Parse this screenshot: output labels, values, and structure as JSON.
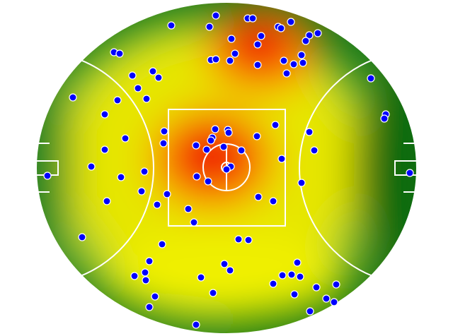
{
  "chart_data": {
    "type": "scatter",
    "color": "#0000ff",
    "xlim": [
      0,
      64
    ],
    "ylim": [
      47.6,
      0
    ],
    "x": [
      30.5,
      35.0,
      35.7,
      24.2,
      29.6,
      39.3,
      39.7,
      41.1,
      43.7,
      44.9,
      36.9,
      32.7,
      36.4,
      43.2,
      16.1,
      16.9,
      33.2,
      42.6,
      29.8,
      30.5,
      32.5,
      36.4,
      40.1,
      41.5,
      42.8,
      21.6,
      18.7,
      22.4,
      40.5,
      52.4,
      19.5,
      20.7,
      16.6,
      10.3,
      14.8,
      54.5,
      54.3,
      30.4,
      32.2,
      32.3,
      38.9,
      23.2,
      43.7,
      30.0,
      29.8,
      36.3,
      17.7,
      23.1,
      27.7,
      31.6,
      29.2,
      34.1,
      44.4,
      14.8,
      39.8,
      12.9,
      32.6,
      32.0,
      20.4,
      27.8,
      6.7,
      57.9,
      17.1,
      29.4,
      42.6,
      20.0,
      23.6,
      36.5,
      38.6,
      15.1,
      22.2,
      26.6,
      27.4,
      11.6,
      33.7,
      35.1,
      22.9,
      21.1,
      31.7,
      32.5,
      42.0,
      20.5,
      19.0,
      20.6,
      28.4,
      39.9,
      41.2,
      42.4,
      38.6,
      47.5,
      44.7,
      30.1,
      41.6,
      21.9,
      46.1,
      47.2,
      21.1,
      43.8,
      27.7
    ],
    "y": [
      2.2,
      2.6,
      2.6,
      3.6,
      3.8,
      3.8,
      4.0,
      3.1,
      5.0,
      4.7,
      5.1,
      5.5,
      6.3,
      5.8,
      7.4,
      7.6,
      7.6,
      7.8,
      8.5,
      8.4,
      8.6,
      9.2,
      8.6,
      9.1,
      8.9,
      10.1,
      10.7,
      11.0,
      10.4,
      11.1,
      12.5,
      14.0,
      14.2,
      13.8,
      16.2,
      16.2,
      16.8,
      18.3,
      18.4,
      18.8,
      17.7,
      18.6,
      18.7,
      19.5,
      19.9,
      19.3,
      19.6,
      20.3,
      20.6,
      20.8,
      21.2,
      21.3,
      21.3,
      21.2,
      22.5,
      23.6,
      23.6,
      24.0,
      24.3,
      25.0,
      24.9,
      24.5,
      25.1,
      25.7,
      25.9,
      27.1,
      27.5,
      27.9,
      28.5,
      28.5,
      29.0,
      29.6,
      31.5,
      33.6,
      33.9,
      34.0,
      34.6,
      37.0,
      37.4,
      38.3,
      37.2,
      38.6,
      39.1,
      39.7,
      39.3,
      39.0,
      38.9,
      39.2,
      40.2,
      40.3,
      40.7,
      41.5,
      41.7,
      42.0,
      42.3,
      42.8,
      43.5,
      44.1,
      46.0
    ]
  }
}
